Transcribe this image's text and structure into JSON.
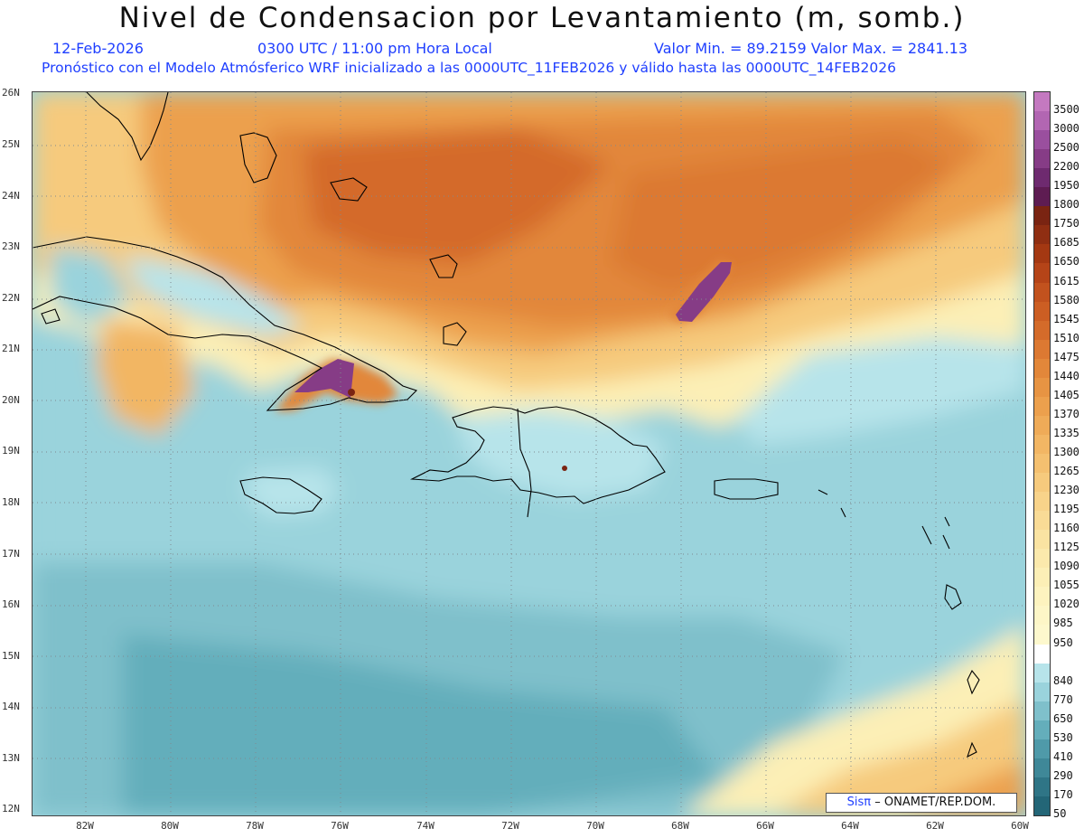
{
  "header": {
    "title": "Nivel de Condensacion por Levantamiento (m, somb.)",
    "date": "12-Feb-2026",
    "time": "0300 UTC / 11:00 pm Hora Local",
    "minmax": "Valor Min. = 89.2159  Valor Max. = 2841.13",
    "model_line": "Pronóstico con el Modelo Atmósferico WRF inicializado a las 0000UTC_11FEB2026 y válido hasta las  0000UTC_14FEB2026"
  },
  "map": {
    "lat_labels": [
      "26N",
      "25N",
      "24N",
      "23N",
      "22N",
      "21N",
      "20N",
      "19N",
      "18N",
      "17N",
      "16N",
      "15N",
      "14N",
      "13N",
      "12N"
    ],
    "lon_labels": [
      "82W",
      "80W",
      "78W",
      "76W",
      "74W",
      "72W",
      "70W",
      "68W",
      "66W",
      "64W",
      "62W",
      "60W"
    ],
    "lat_range": [
      12,
      26
    ],
    "lon_range": [
      -83.2,
      -60.1
    ]
  },
  "colorbar": {
    "labels": [
      "3500",
      "3000",
      "2500",
      "2200",
      "1950",
      "1800",
      "1750",
      "1685",
      "1650",
      "1615",
      "1580",
      "1545",
      "1510",
      "1475",
      "1440",
      "1405",
      "1370",
      "1335",
      "1300",
      "1265",
      "1230",
      "1195",
      "1160",
      "1125",
      "1090",
      "1055",
      "1020",
      "985",
      "950",
      "840",
      "770",
      "650",
      "530",
      "410",
      "290",
      "170",
      "50"
    ],
    "colors": [
      "#c479c0",
      "#b266b2",
      "#9a4f9e",
      "#863c86",
      "#6e2a6f",
      "#5e1c52",
      "#7a2412",
      "#8f2e12",
      "#a43812",
      "#b54418",
      "#c2521e",
      "#cc5e23",
      "#d46b2a",
      "#dc7932",
      "#e2873a",
      "#e79443",
      "#eca04d",
      "#efab58",
      "#f2b664",
      "#f4c070",
      "#f6ca7d",
      "#f8d38a",
      "#f9db96",
      "#fae3a2",
      "#fbe9ac",
      "#fcefb6",
      "#fdf3bf",
      "#fdf6c7",
      "#fdf8cd",
      "#ffffff",
      "#b7e4ea",
      "#9ad3dc",
      "#7fc0cb",
      "#64aebb",
      "#4f9aa9",
      "#3f8898",
      "#2f7586",
      "#236677"
    ]
  },
  "credit": {
    "brand": "Sisπ",
    "text": "– ONAMET/REP.DOM."
  }
}
